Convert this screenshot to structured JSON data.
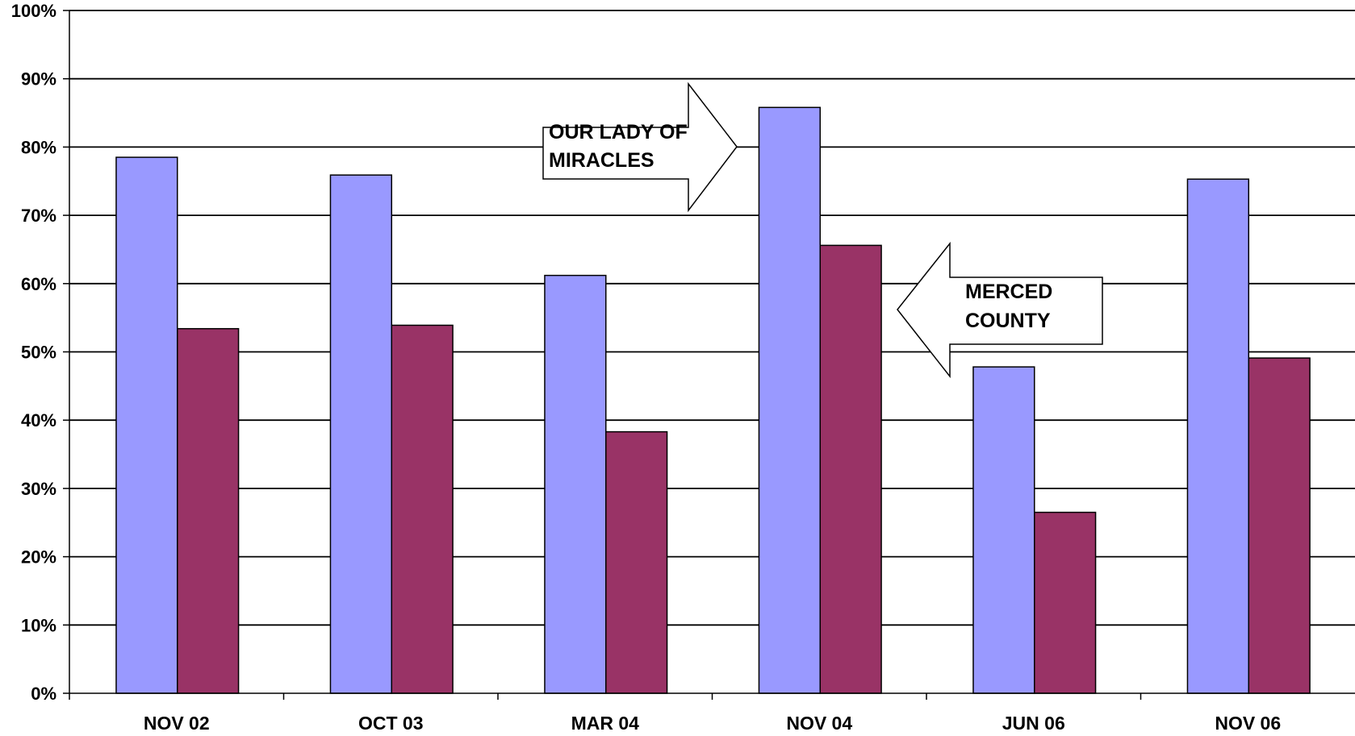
{
  "chart_data": {
    "type": "bar",
    "categories": [
      "NOV 02",
      "OCT 03",
      "MAR 04",
      "NOV 04",
      "JUN 06",
      "NOV 06"
    ],
    "series": [
      {
        "values": [
          78.5,
          75.9,
          61.2,
          85.8,
          47.8,
          75.3
        ],
        "color": "#9999FF"
      },
      {
        "values": [
          53.4,
          53.9,
          38.3,
          65.6,
          26.5,
          49.1
        ],
        "color": "#993366"
      }
    ],
    "ylim": [
      0,
      100
    ],
    "yticks": [
      "0%",
      "10%",
      "20%",
      "30%",
      "40%",
      "50%",
      "60%",
      "70%",
      "80%",
      "90%",
      "100%"
    ],
    "grid": true,
    "annotations": [
      {
        "lines": [
          "OUR LADY OF",
          "MIRACLES"
        ],
        "arrow": "right"
      },
      {
        "lines": [
          "MERCED",
          "COUNTY"
        ],
        "arrow": "left"
      }
    ]
  }
}
